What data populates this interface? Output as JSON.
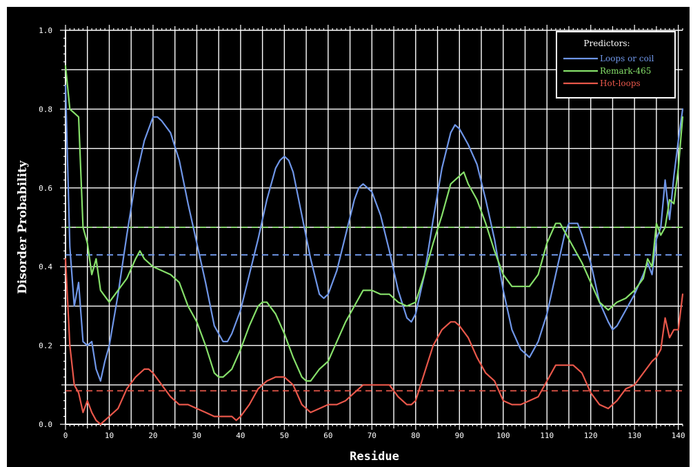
{
  "chart_data": {
    "type": "line",
    "xlabel": "Residue",
    "ylabel": "Disorder Probability",
    "xlim": [
      0,
      141
    ],
    "ylim": [
      0,
      1.0
    ],
    "x_ticks": [
      "0",
      "10",
      "20",
      "30",
      "40",
      "50",
      "60",
      "70",
      "80",
      "90",
      "100",
      "110",
      "120",
      "130",
      "140"
    ],
    "y_ticks": [
      "0.0",
      "0.2",
      "0.4",
      "0.6",
      "0.8",
      "1.0"
    ],
    "grid": true,
    "legend_title": "Predictors:",
    "legend_position": "top-right",
    "series": [
      {
        "name": "Loops or coil",
        "color": "#6f96e8",
        "threshold": 0.43,
        "points": [
          [
            0,
            0.86
          ],
          [
            1,
            0.45
          ],
          [
            2,
            0.3
          ],
          [
            3,
            0.36
          ],
          [
            4,
            0.21
          ],
          [
            5,
            0.2
          ],
          [
            6,
            0.21
          ],
          [
            7,
            0.14
          ],
          [
            8,
            0.11
          ],
          [
            9,
            0.16
          ],
          [
            10,
            0.2
          ],
          [
            12,
            0.33
          ],
          [
            14,
            0.48
          ],
          [
            16,
            0.62
          ],
          [
            18,
            0.72
          ],
          [
            20,
            0.78
          ],
          [
            21,
            0.78
          ],
          [
            22,
            0.77
          ],
          [
            24,
            0.74
          ],
          [
            26,
            0.67
          ],
          [
            28,
            0.56
          ],
          [
            30,
            0.46
          ],
          [
            32,
            0.36
          ],
          [
            34,
            0.25
          ],
          [
            36,
            0.21
          ],
          [
            37,
            0.21
          ],
          [
            38,
            0.23
          ],
          [
            40,
            0.29
          ],
          [
            42,
            0.38
          ],
          [
            44,
            0.47
          ],
          [
            46,
            0.57
          ],
          [
            48,
            0.65
          ],
          [
            49,
            0.67
          ],
          [
            50,
            0.68
          ],
          [
            51,
            0.67
          ],
          [
            52,
            0.64
          ],
          [
            54,
            0.53
          ],
          [
            56,
            0.42
          ],
          [
            58,
            0.33
          ],
          [
            59,
            0.32
          ],
          [
            60,
            0.33
          ],
          [
            62,
            0.39
          ],
          [
            64,
            0.48
          ],
          [
            66,
            0.57
          ],
          [
            67,
            0.6
          ],
          [
            68,
            0.61
          ],
          [
            70,
            0.59
          ],
          [
            72,
            0.53
          ],
          [
            74,
            0.44
          ],
          [
            76,
            0.34
          ],
          [
            78,
            0.27
          ],
          [
            79,
            0.26
          ],
          [
            80,
            0.28
          ],
          [
            82,
            0.38
          ],
          [
            84,
            0.52
          ],
          [
            86,
            0.65
          ],
          [
            88,
            0.74
          ],
          [
            89,
            0.76
          ],
          [
            90,
            0.75
          ],
          [
            92,
            0.71
          ],
          [
            94,
            0.66
          ],
          [
            96,
            0.57
          ],
          [
            98,
            0.47
          ],
          [
            100,
            0.34
          ],
          [
            102,
            0.24
          ],
          [
            104,
            0.19
          ],
          [
            105,
            0.18
          ],
          [
            106,
            0.17
          ],
          [
            107,
            0.19
          ],
          [
            108,
            0.21
          ],
          [
            110,
            0.28
          ],
          [
            112,
            0.38
          ],
          [
            114,
            0.48
          ],
          [
            115,
            0.51
          ],
          [
            116,
            0.51
          ],
          [
            117,
            0.51
          ],
          [
            118,
            0.48
          ],
          [
            120,
            0.41
          ],
          [
            122,
            0.31
          ],
          [
            124,
            0.26
          ],
          [
            125,
            0.24
          ],
          [
            126,
            0.25
          ],
          [
            128,
            0.29
          ],
          [
            130,
            0.33
          ],
          [
            132,
            0.38
          ],
          [
            133,
            0.41
          ],
          [
            134,
            0.38
          ],
          [
            135,
            0.47
          ],
          [
            136,
            0.5
          ],
          [
            137,
            0.62
          ],
          [
            138,
            0.52
          ],
          [
            139,
            0.63
          ],
          [
            140,
            0.72
          ],
          [
            141,
            0.8
          ]
        ]
      },
      {
        "name": "Remark-465",
        "color": "#86e06a",
        "threshold": 0.5,
        "points": [
          [
            0,
            0.91
          ],
          [
            1,
            0.8
          ],
          [
            2,
            0.79
          ],
          [
            3,
            0.78
          ],
          [
            4,
            0.5
          ],
          [
            5,
            0.46
          ],
          [
            6,
            0.38
          ],
          [
            7,
            0.42
          ],
          [
            8,
            0.34
          ],
          [
            10,
            0.31
          ],
          [
            12,
            0.34
          ],
          [
            14,
            0.37
          ],
          [
            16,
            0.42
          ],
          [
            17,
            0.44
          ],
          [
            18,
            0.42
          ],
          [
            20,
            0.4
          ],
          [
            22,
            0.39
          ],
          [
            24,
            0.38
          ],
          [
            26,
            0.36
          ],
          [
            28,
            0.3
          ],
          [
            30,
            0.26
          ],
          [
            32,
            0.2
          ],
          [
            34,
            0.13
          ],
          [
            35,
            0.12
          ],
          [
            36,
            0.12
          ],
          [
            38,
            0.14
          ],
          [
            40,
            0.19
          ],
          [
            42,
            0.25
          ],
          [
            44,
            0.3
          ],
          [
            45,
            0.31
          ],
          [
            46,
            0.31
          ],
          [
            48,
            0.28
          ],
          [
            50,
            0.23
          ],
          [
            52,
            0.17
          ],
          [
            54,
            0.12
          ],
          [
            55,
            0.11
          ],
          [
            56,
            0.11
          ],
          [
            58,
            0.14
          ],
          [
            60,
            0.16
          ],
          [
            62,
            0.21
          ],
          [
            64,
            0.26
          ],
          [
            66,
            0.3
          ],
          [
            68,
            0.34
          ],
          [
            70,
            0.34
          ],
          [
            72,
            0.33
          ],
          [
            74,
            0.33
          ],
          [
            76,
            0.31
          ],
          [
            78,
            0.3
          ],
          [
            80,
            0.31
          ],
          [
            82,
            0.38
          ],
          [
            84,
            0.46
          ],
          [
            86,
            0.53
          ],
          [
            88,
            0.61
          ],
          [
            90,
            0.63
          ],
          [
            91,
            0.64
          ],
          [
            92,
            0.61
          ],
          [
            94,
            0.57
          ],
          [
            96,
            0.51
          ],
          [
            98,
            0.44
          ],
          [
            100,
            0.38
          ],
          [
            102,
            0.35
          ],
          [
            104,
            0.35
          ],
          [
            106,
            0.35
          ],
          [
            108,
            0.38
          ],
          [
            110,
            0.46
          ],
          [
            112,
            0.51
          ],
          [
            113,
            0.51
          ],
          [
            114,
            0.49
          ],
          [
            116,
            0.45
          ],
          [
            118,
            0.41
          ],
          [
            120,
            0.36
          ],
          [
            122,
            0.31
          ],
          [
            124,
            0.29
          ],
          [
            125,
            0.3
          ],
          [
            126,
            0.31
          ],
          [
            128,
            0.32
          ],
          [
            130,
            0.34
          ],
          [
            132,
            0.37
          ],
          [
            133,
            0.42
          ],
          [
            134,
            0.4
          ],
          [
            135,
            0.51
          ],
          [
            136,
            0.48
          ],
          [
            137,
            0.5
          ],
          [
            138,
            0.57
          ],
          [
            139,
            0.56
          ],
          [
            140,
            0.65
          ],
          [
            141,
            0.78
          ]
        ]
      },
      {
        "name": "Hot-loops",
        "color": "#e8574a",
        "threshold": 0.085,
        "points": [
          [
            0,
            0.42
          ],
          [
            1,
            0.2
          ],
          [
            2,
            0.1
          ],
          [
            3,
            0.08
          ],
          [
            4,
            0.03
          ],
          [
            5,
            0.06
          ],
          [
            6,
            0.03
          ],
          [
            7,
            0.01
          ],
          [
            8,
            0.0
          ],
          [
            9,
            0.01
          ],
          [
            10,
            0.02
          ],
          [
            12,
            0.04
          ],
          [
            14,
            0.09
          ],
          [
            16,
            0.12
          ],
          [
            18,
            0.14
          ],
          [
            19,
            0.14
          ],
          [
            20,
            0.13
          ],
          [
            22,
            0.1
          ],
          [
            24,
            0.07
          ],
          [
            26,
            0.05
          ],
          [
            28,
            0.05
          ],
          [
            30,
            0.04
          ],
          [
            32,
            0.03
          ],
          [
            34,
            0.02
          ],
          [
            36,
            0.02
          ],
          [
            38,
            0.02
          ],
          [
            39,
            0.01
          ],
          [
            40,
            0.02
          ],
          [
            42,
            0.05
          ],
          [
            44,
            0.09
          ],
          [
            46,
            0.11
          ],
          [
            48,
            0.12
          ],
          [
            49,
            0.12
          ],
          [
            50,
            0.12
          ],
          [
            52,
            0.1
          ],
          [
            54,
            0.05
          ],
          [
            56,
            0.03
          ],
          [
            58,
            0.04
          ],
          [
            60,
            0.05
          ],
          [
            62,
            0.05
          ],
          [
            64,
            0.06
          ],
          [
            66,
            0.08
          ],
          [
            68,
            0.1
          ],
          [
            70,
            0.1
          ],
          [
            72,
            0.1
          ],
          [
            74,
            0.1
          ],
          [
            76,
            0.07
          ],
          [
            78,
            0.05
          ],
          [
            79,
            0.05
          ],
          [
            80,
            0.06
          ],
          [
            82,
            0.13
          ],
          [
            84,
            0.2
          ],
          [
            86,
            0.24
          ],
          [
            88,
            0.26
          ],
          [
            89,
            0.26
          ],
          [
            90,
            0.25
          ],
          [
            92,
            0.22
          ],
          [
            94,
            0.17
          ],
          [
            96,
            0.13
          ],
          [
            98,
            0.11
          ],
          [
            100,
            0.06
          ],
          [
            102,
            0.05
          ],
          [
            104,
            0.05
          ],
          [
            106,
            0.06
          ],
          [
            108,
            0.07
          ],
          [
            110,
            0.11
          ],
          [
            112,
            0.15
          ],
          [
            114,
            0.15
          ],
          [
            116,
            0.15
          ],
          [
            118,
            0.13
          ],
          [
            120,
            0.08
          ],
          [
            122,
            0.05
          ],
          [
            124,
            0.04
          ],
          [
            126,
            0.06
          ],
          [
            128,
            0.09
          ],
          [
            130,
            0.1
          ],
          [
            132,
            0.13
          ],
          [
            134,
            0.16
          ],
          [
            135,
            0.17
          ],
          [
            136,
            0.19
          ],
          [
            137,
            0.27
          ],
          [
            138,
            0.22
          ],
          [
            139,
            0.24
          ],
          [
            140,
            0.24
          ],
          [
            141,
            0.33
          ]
        ]
      }
    ]
  }
}
